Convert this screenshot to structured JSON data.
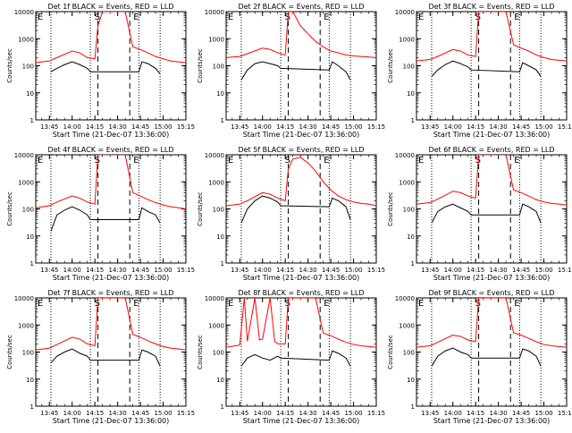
{
  "colors": {
    "events": "#000000",
    "lld": "#ff0000",
    "axes": "#000000",
    "background": "#ffffff"
  },
  "shared": {
    "xlabel": "Start Time (21-Dec-07 13:36:00)",
    "ylabel": "Counts/sec",
    "xticks": [
      "13:45",
      "14:00",
      "14:15",
      "14:30",
      "14:45",
      "15:00",
      "15:15"
    ],
    "yticks": [
      "1",
      "10",
      "100",
      "1000",
      "10000"
    ],
    "marker_labels": {
      "E_left": "E",
      "S": "S",
      "E_right": "E"
    }
  },
  "chart_data": [
    {
      "type": "line",
      "title": "Det 1f BLACK = Events, RED = LLD",
      "xlabel": "Start Time (21-Dec-07 13:36:00)",
      "ylabel": "Counts/sec",
      "x_range": [
        "13:36",
        "15:15"
      ],
      "ylim": [
        1,
        10000
      ],
      "y_scale": "log",
      "grid": false,
      "vlines_dotted": [
        "13:46",
        "14:12",
        "14:44",
        "14:58"
      ],
      "vlines_dashed": [
        "14:17",
        "14:38"
      ],
      "series": [
        {
          "color": "red",
          "x": [
            "13:36",
            "13:45",
            "13:50",
            "14:00",
            "14:05",
            "14:10",
            "14:15",
            "14:17",
            "14:20",
            "14:25",
            "14:30",
            "14:35",
            "14:40",
            "14:45",
            "14:50",
            "14:55",
            "15:00",
            "15:05",
            "15:10",
            "15:15"
          ],
          "values": [
            130,
            150,
            200,
            350,
            300,
            200,
            180,
            3000,
            10000,
            10000,
            10000,
            10000,
            500,
            400,
            300,
            220,
            180,
            150,
            140,
            130
          ]
        },
        {
          "color": "black",
          "x": [
            "13:46",
            "13:50",
            "13:55",
            "14:00",
            "14:05",
            "14:10",
            "14:12",
            "14:44",
            "14:46",
            "14:50",
            "14:55",
            "14:58"
          ],
          "values": [
            60,
            80,
            110,
            140,
            110,
            80,
            60,
            60,
            140,
            120,
            80,
            50
          ]
        }
      ]
    },
    {
      "type": "line",
      "title": "Det 2f BLACK = Events, RED = LLD",
      "xlabel": "Start Time (21-Dec-07 13:36:00)",
      "ylabel": "Counts/sec",
      "x_range": [
        "13:36",
        "15:15"
      ],
      "ylim": [
        1,
        10000
      ],
      "y_scale": "log",
      "grid": false,
      "vlines_dotted": [
        "13:46",
        "14:12",
        "14:44",
        "14:58"
      ],
      "vlines_dashed": [
        "14:17",
        "14:38"
      ],
      "series": [
        {
          "color": "red",
          "x": [
            "13:36",
            "13:45",
            "13:50",
            "14:00",
            "14:05",
            "14:10",
            "14:15",
            "14:17",
            "14:20",
            "14:25",
            "14:30",
            "14:35",
            "14:40",
            "14:45",
            "14:50",
            "14:55",
            "15:00",
            "15:05",
            "15:10",
            "15:15"
          ],
          "values": [
            200,
            220,
            280,
            450,
            400,
            300,
            250,
            10000,
            10000,
            3000,
            1500,
            800,
            500,
            350,
            300,
            250,
            230,
            220,
            210,
            200
          ]
        },
        {
          "color": "black",
          "x": [
            "13:46",
            "13:50",
            "13:55",
            "14:00",
            "14:05",
            "14:10",
            "14:12",
            "14:44",
            "14:46",
            "14:50",
            "14:55",
            "14:58"
          ],
          "values": [
            30,
            70,
            120,
            140,
            120,
            100,
            80,
            70,
            140,
            100,
            60,
            30
          ]
        }
      ]
    },
    {
      "type": "line",
      "title": "Det 3f BLACK = Events, RED = LLD",
      "xlabel": "Start Time (21-Dec-07 13:36:00)",
      "ylabel": "Counts/sec",
      "x_range": [
        "13:36",
        "15:15"
      ],
      "ylim": [
        1,
        10000
      ],
      "y_scale": "log",
      "grid": false,
      "vlines_dotted": [
        "13:46",
        "14:12",
        "14:44",
        "14:58"
      ],
      "vlines_dashed": [
        "14:17",
        "14:38"
      ],
      "series": [
        {
          "color": "red",
          "x": [
            "13:36",
            "13:45",
            "13:50",
            "14:00",
            "14:05",
            "14:10",
            "14:15",
            "14:17",
            "14:20",
            "14:25",
            "14:30",
            "14:35",
            "14:40",
            "14:45",
            "14:50",
            "14:55",
            "15:00",
            "15:05",
            "15:10",
            "15:15"
          ],
          "values": [
            150,
            170,
            220,
            400,
            350,
            250,
            220,
            10000,
            10000,
            10000,
            10000,
            10000,
            600,
            450,
            350,
            250,
            200,
            170,
            160,
            150
          ]
        },
        {
          "color": "black",
          "x": [
            "13:46",
            "13:50",
            "13:55",
            "14:00",
            "14:05",
            "14:10",
            "14:12",
            "14:44",
            "14:46",
            "14:50",
            "14:55",
            "14:58"
          ],
          "values": [
            40,
            70,
            110,
            150,
            120,
            90,
            70,
            60,
            130,
            100,
            70,
            40
          ]
        }
      ]
    },
    {
      "type": "line",
      "title": "Det 4f BLACK = Events, RED = LLD",
      "xlabel": "Start Time (21-Dec-07 13:36:00)",
      "ylabel": "Counts/sec",
      "x_range": [
        "13:36",
        "15:15"
      ],
      "ylim": [
        1,
        10000
      ],
      "y_scale": "log",
      "grid": false,
      "vlines_dotted": [
        "13:46",
        "14:12",
        "14:44",
        "14:58"
      ],
      "vlines_dashed": [
        "14:17",
        "14:38"
      ],
      "series": [
        {
          "color": "red",
          "x": [
            "13:36",
            "13:45",
            "13:50",
            "14:00",
            "14:05",
            "14:10",
            "14:15",
            "14:17",
            "14:20",
            "14:25",
            "14:30",
            "14:35",
            "14:40",
            "14:45",
            "14:50",
            "14:55",
            "15:00",
            "15:05",
            "15:10",
            "15:15"
          ],
          "values": [
            110,
            130,
            180,
            300,
            250,
            180,
            150,
            10000,
            10000,
            10000,
            10000,
            10000,
            400,
            300,
            220,
            170,
            140,
            120,
            110,
            100
          ]
        },
        {
          "color": "black",
          "x": [
            "13:46",
            "13:50",
            "13:55",
            "14:00",
            "14:05",
            "14:10",
            "14:12",
            "14:44",
            "14:46",
            "14:50",
            "14:55",
            "14:58"
          ],
          "values": [
            15,
            60,
            90,
            120,
            90,
            60,
            40,
            40,
            110,
            80,
            60,
            30
          ]
        }
      ]
    },
    {
      "type": "line",
      "title": "Det 5f BLACK = Events, RED = LLD",
      "xlabel": "Start Time (21-Dec-07 13:36:00)",
      "ylabel": "Counts/sec",
      "x_range": [
        "13:36",
        "15:15"
      ],
      "ylim": [
        1,
        10000
      ],
      "y_scale": "log",
      "grid": false,
      "vlines_dotted": [
        "13:46",
        "14:12",
        "14:44",
        "14:58"
      ],
      "vlines_dashed": [
        "14:17",
        "14:38"
      ],
      "series": [
        {
          "color": "red",
          "x": [
            "13:36",
            "13:45",
            "13:50",
            "14:00",
            "14:05",
            "14:10",
            "14:15",
            "14:17",
            "14:20",
            "14:25",
            "14:30",
            "14:35",
            "14:40",
            "14:45",
            "14:50",
            "14:55",
            "15:00",
            "15:05",
            "15:10",
            "15:15"
          ],
          "values": [
            130,
            150,
            200,
            400,
            350,
            250,
            200,
            3000,
            7000,
            8000,
            5000,
            2500,
            1000,
            500,
            300,
            220,
            180,
            160,
            150,
            130
          ]
        },
        {
          "color": "black",
          "x": [
            "13:46",
            "13:50",
            "13:55",
            "14:00",
            "14:05",
            "14:10",
            "14:12",
            "14:44",
            "14:46",
            "14:50",
            "14:55",
            "14:58"
          ],
          "values": [
            30,
            100,
            200,
            300,
            250,
            180,
            130,
            120,
            250,
            200,
            120,
            40
          ]
        }
      ]
    },
    {
      "type": "line",
      "title": "Det 6f BLACK = Events, RED = LLD",
      "xlabel": "Start Time (21-Dec-07 13:36:00)",
      "ylabel": "Counts/sec",
      "x_range": [
        "13:36",
        "15:15"
      ],
      "ylim": [
        1,
        10000
      ],
      "y_scale": "log",
      "grid": false,
      "vlines_dotted": [
        "13:46",
        "14:12",
        "14:44",
        "14:58"
      ],
      "vlines_dashed": [
        "14:17",
        "14:38"
      ],
      "series": [
        {
          "color": "red",
          "x": [
            "13:36",
            "13:45",
            "13:50",
            "14:00",
            "14:05",
            "14:10",
            "14:15",
            "14:17",
            "14:20",
            "14:25",
            "14:30",
            "14:35",
            "14:40",
            "14:45",
            "14:50",
            "14:55",
            "15:00",
            "15:05",
            "15:10",
            "15:15"
          ],
          "values": [
            150,
            170,
            230,
            450,
            400,
            300,
            250,
            10000,
            10000,
            10000,
            10000,
            10000,
            500,
            400,
            300,
            220,
            180,
            160,
            150,
            140
          ]
        },
        {
          "color": "black",
          "x": [
            "13:46",
            "13:50",
            "13:55",
            "14:00",
            "14:05",
            "14:10",
            "14:12",
            "14:44",
            "14:46",
            "14:50",
            "14:55",
            "14:58"
          ],
          "values": [
            30,
            80,
            120,
            150,
            110,
            80,
            60,
            60,
            150,
            120,
            80,
            30
          ]
        }
      ]
    },
    {
      "type": "line",
      "title": "Det 7f BLACK = Events, RED = LLD",
      "xlabel": "Start Time (21-Dec-07 13:36:00)",
      "ylabel": "Counts/sec",
      "x_range": [
        "13:36",
        "15:15"
      ],
      "ylim": [
        1,
        10000
      ],
      "y_scale": "log",
      "grid": false,
      "vlines_dotted": [
        "13:46",
        "14:12",
        "14:44",
        "14:58"
      ],
      "vlines_dashed": [
        "14:17",
        "14:38"
      ],
      "series": [
        {
          "color": "red",
          "x": [
            "13:36",
            "13:45",
            "13:50",
            "14:00",
            "14:05",
            "14:10",
            "14:15",
            "14:17",
            "14:20",
            "14:25",
            "14:30",
            "14:35",
            "14:40",
            "14:45",
            "14:50",
            "14:55",
            "15:00",
            "15:05",
            "15:10",
            "15:15"
          ],
          "values": [
            120,
            140,
            190,
            350,
            300,
            200,
            170,
            10000,
            10000,
            10000,
            10000,
            10000,
            450,
            350,
            260,
            200,
            160,
            140,
            130,
            120
          ]
        },
        {
          "color": "black",
          "x": [
            "13:46",
            "13:50",
            "13:55",
            "14:00",
            "14:05",
            "14:10",
            "14:12",
            "14:44",
            "14:46",
            "14:50",
            "14:55",
            "14:58"
          ],
          "values": [
            40,
            70,
            100,
            130,
            90,
            70,
            50,
            50,
            120,
            100,
            70,
            30
          ]
        }
      ]
    },
    {
      "type": "line",
      "title": "Det 8f BLACK = Events, RED = LLD",
      "xlabel": "Start Time (21-Dec-07 13:36:00)",
      "ylabel": "Counts/sec",
      "x_range": [
        "13:36",
        "15:15"
      ],
      "ylim": [
        1,
        10000
      ],
      "y_scale": "log",
      "grid": false,
      "vlines_dotted": [
        "13:46",
        "14:12",
        "14:44",
        "14:58"
      ],
      "vlines_dashed": [
        "14:17",
        "14:38"
      ],
      "series": [
        {
          "color": "red",
          "x": [
            "13:36",
            "13:45",
            "13:48",
            "13:50",
            "13:55",
            "13:58",
            "14:00",
            "14:05",
            "14:08",
            "14:10",
            "14:15",
            "14:17",
            "14:20",
            "14:25",
            "14:30",
            "14:35",
            "14:40",
            "14:45",
            "14:50",
            "14:55",
            "15:00",
            "15:05",
            "15:10",
            "15:15"
          ],
          "values": [
            150,
            180,
            10000,
            250,
            10000,
            280,
            300,
            10000,
            250,
            200,
            200,
            10000,
            10000,
            10000,
            10000,
            10000,
            500,
            400,
            300,
            230,
            190,
            170,
            160,
            150
          ]
        },
        {
          "color": "black",
          "x": [
            "13:46",
            "13:50",
            "13:55",
            "14:00",
            "14:05",
            "14:10",
            "14:12",
            "14:44",
            "14:46",
            "14:50",
            "14:55",
            "14:58"
          ],
          "values": [
            30,
            60,
            80,
            60,
            50,
            70,
            60,
            50,
            110,
            90,
            60,
            30
          ]
        }
      ]
    },
    {
      "type": "line",
      "title": "Det 9f BLACK = Events, RED = LLD",
      "xlabel": "Start Time (21-Dec-07 13:36:00)",
      "ylabel": "Counts/sec",
      "x_range": [
        "13:36",
        "15:15"
      ],
      "ylim": [
        1,
        10000
      ],
      "y_scale": "log",
      "grid": false,
      "vlines_dotted": [
        "13:46",
        "14:12",
        "14:44",
        "14:58"
      ],
      "vlines_dashed": [
        "14:17",
        "14:38"
      ],
      "series": [
        {
          "color": "red",
          "x": [
            "13:36",
            "13:45",
            "13:50",
            "14:00",
            "14:05",
            "14:10",
            "14:15",
            "14:17",
            "14:20",
            "14:25",
            "14:30",
            "14:35",
            "14:40",
            "14:45",
            "14:50",
            "14:55",
            "15:00",
            "15:05",
            "15:10",
            "15:15"
          ],
          "values": [
            150,
            170,
            230,
            420,
            380,
            280,
            240,
            10000,
            10000,
            10000,
            10000,
            10000,
            520,
            420,
            320,
            240,
            190,
            170,
            160,
            150
          ]
        },
        {
          "color": "black",
          "x": [
            "13:46",
            "13:50",
            "13:55",
            "14:00",
            "14:05",
            "14:10",
            "14:12",
            "14:44",
            "14:46",
            "14:50",
            "14:55",
            "14:58"
          ],
          "values": [
            30,
            70,
            110,
            140,
            100,
            80,
            60,
            60,
            130,
            110,
            70,
            30
          ]
        }
      ]
    }
  ]
}
